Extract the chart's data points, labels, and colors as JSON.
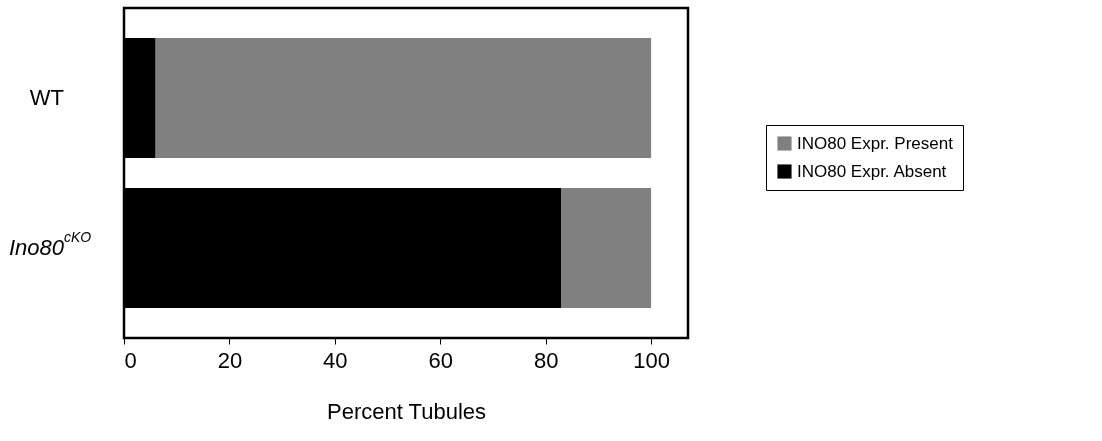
{
  "chart_data": {
    "type": "bar",
    "orientation": "horizontal",
    "stacked": true,
    "categories": [
      "WT",
      "Ino80$^{cKO}$"
    ],
    "series": [
      {
        "name": "INO80 Expr. Absent",
        "color": "#000000",
        "values": [
          6,
          83
        ]
      },
      {
        "name": "INO80 Expr. Present",
        "color": "#808080",
        "values": [
          94,
          17
        ]
      }
    ],
    "xlabel": "Percent Tubules",
    "xlim": [
      0,
      107
    ],
    "xticks": [
      0,
      20,
      40,
      60,
      80,
      100
    ],
    "legend": "right",
    "grid": false
  }
}
